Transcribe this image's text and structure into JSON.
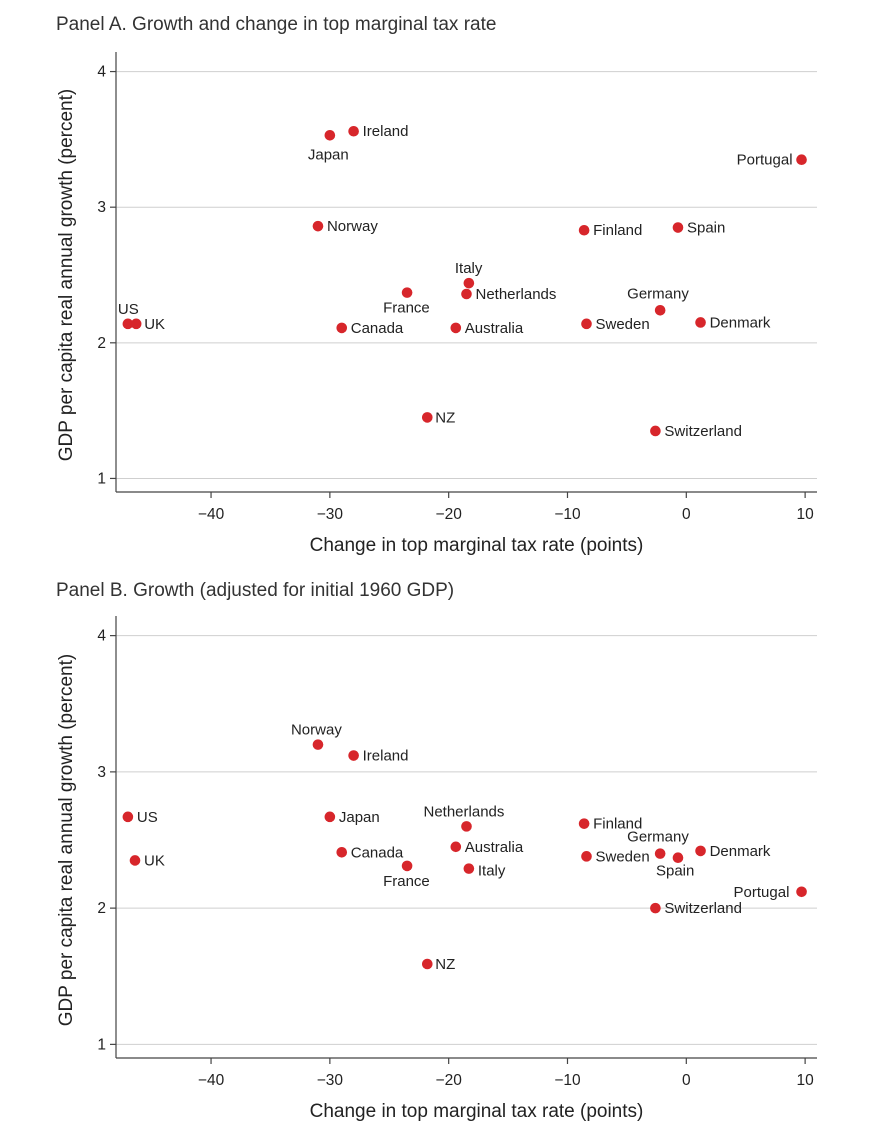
{
  "panels": [
    {
      "id": "a",
      "title": "Panel A. Growth and change in top marginal tax rate",
      "xlabel": "Change in top marginal tax rate (points)",
      "ylabel": "GDP per capita real annual growth (percent)"
    },
    {
      "id": "b",
      "title": "Panel B. Growth (adjusted for initial 1960 GDP)",
      "xlabel": "Change in top marginal tax rate (points)",
      "ylabel": "GDP per capita real annual growth (percent)"
    }
  ],
  "chart_data": [
    {
      "type": "scatter",
      "title": "Panel A. Growth and change in top marginal tax rate",
      "xlabel": "Change in top marginal tax rate (points)",
      "ylabel": "GDP per capita real annual growth (percent)",
      "xlim": [
        -48,
        11
      ],
      "ylim": [
        0.9,
        4.1
      ],
      "xticks": [
        -40,
        -30,
        -20,
        -10,
        0,
        10
      ],
      "xtick_labels": [
        "−40",
        "−30",
        "−20",
        "−10",
        "0",
        "10"
      ],
      "yticks": [
        1,
        2,
        3,
        4
      ],
      "ytick_labels": [
        "1",
        "2",
        "3",
        "4"
      ],
      "grid": "horizontal",
      "marker_color": "#d7262b",
      "points": [
        {
          "label": "US",
          "x": -47.0,
          "y": 2.14
        },
        {
          "label": "UK",
          "x": -46.3,
          "y": 2.14
        },
        {
          "label": "Japan",
          "x": -30.0,
          "y": 3.53
        },
        {
          "label": "Ireland",
          "x": -28.0,
          "y": 3.56
        },
        {
          "label": "Norway",
          "x": -31.0,
          "y": 2.86
        },
        {
          "label": "France",
          "x": -23.5,
          "y": 2.37
        },
        {
          "label": "Canada",
          "x": -29.0,
          "y": 2.11
        },
        {
          "label": "Italy",
          "x": -18.3,
          "y": 2.44
        },
        {
          "label": "Netherlands",
          "x": -18.5,
          "y": 2.36
        },
        {
          "label": "Australia",
          "x": -19.4,
          "y": 2.11
        },
        {
          "label": "NZ",
          "x": -21.8,
          "y": 1.45
        },
        {
          "label": "Finland",
          "x": -8.6,
          "y": 2.83
        },
        {
          "label": "Spain",
          "x": -0.7,
          "y": 2.85
        },
        {
          "label": "Sweden",
          "x": -8.4,
          "y": 2.14
        },
        {
          "label": "Germany",
          "x": -2.2,
          "y": 2.24
        },
        {
          "label": "Denmark",
          "x": 1.2,
          "y": 2.15
        },
        {
          "label": "Switzerland",
          "x": -2.6,
          "y": 1.35
        },
        {
          "label": "Portugal",
          "x": 9.7,
          "y": 3.35
        }
      ]
    },
    {
      "type": "scatter",
      "title": "Panel B. Growth (adjusted for initial 1960 GDP)",
      "xlabel": "Change in top marginal tax rate (points)",
      "ylabel": "GDP per capita real annual growth (percent)",
      "xlim": [
        -48,
        11
      ],
      "ylim": [
        0.9,
        4.1
      ],
      "xticks": [
        -40,
        -30,
        -20,
        -10,
        0,
        10
      ],
      "xtick_labels": [
        "−40",
        "−30",
        "−20",
        "−10",
        "0",
        "10"
      ],
      "yticks": [
        1,
        2,
        3,
        4
      ],
      "ytick_labels": [
        "1",
        "2",
        "3",
        "4"
      ],
      "grid": "horizontal",
      "marker_color": "#d7262b",
      "points": [
        {
          "label": "US",
          "x": -47.0,
          "y": 2.67
        },
        {
          "label": "UK",
          "x": -46.4,
          "y": 2.35
        },
        {
          "label": "Norway",
          "x": -31.0,
          "y": 3.2
        },
        {
          "label": "Ireland",
          "x": -28.0,
          "y": 3.12
        },
        {
          "label": "Japan",
          "x": -30.0,
          "y": 2.67
        },
        {
          "label": "Canada",
          "x": -29.0,
          "y": 2.41
        },
        {
          "label": "France",
          "x": -23.5,
          "y": 2.31
        },
        {
          "label": "Netherlands",
          "x": -18.5,
          "y": 2.6
        },
        {
          "label": "Australia",
          "x": -19.4,
          "y": 2.45
        },
        {
          "label": "Italy",
          "x": -18.3,
          "y": 2.29
        },
        {
          "label": "NZ",
          "x": -21.8,
          "y": 1.59
        },
        {
          "label": "Finland",
          "x": -8.6,
          "y": 2.62
        },
        {
          "label": "Sweden",
          "x": -8.4,
          "y": 2.38
        },
        {
          "label": "Germany",
          "x": -2.2,
          "y": 2.4
        },
        {
          "label": "Spain",
          "x": -0.7,
          "y": 2.37
        },
        {
          "label": "Denmark",
          "x": 1.2,
          "y": 2.42
        },
        {
          "label": "Portugal",
          "x": 9.7,
          "y": 2.12
        },
        {
          "label": "Switzerland",
          "x": -2.6,
          "y": 2.0
        }
      ]
    }
  ]
}
